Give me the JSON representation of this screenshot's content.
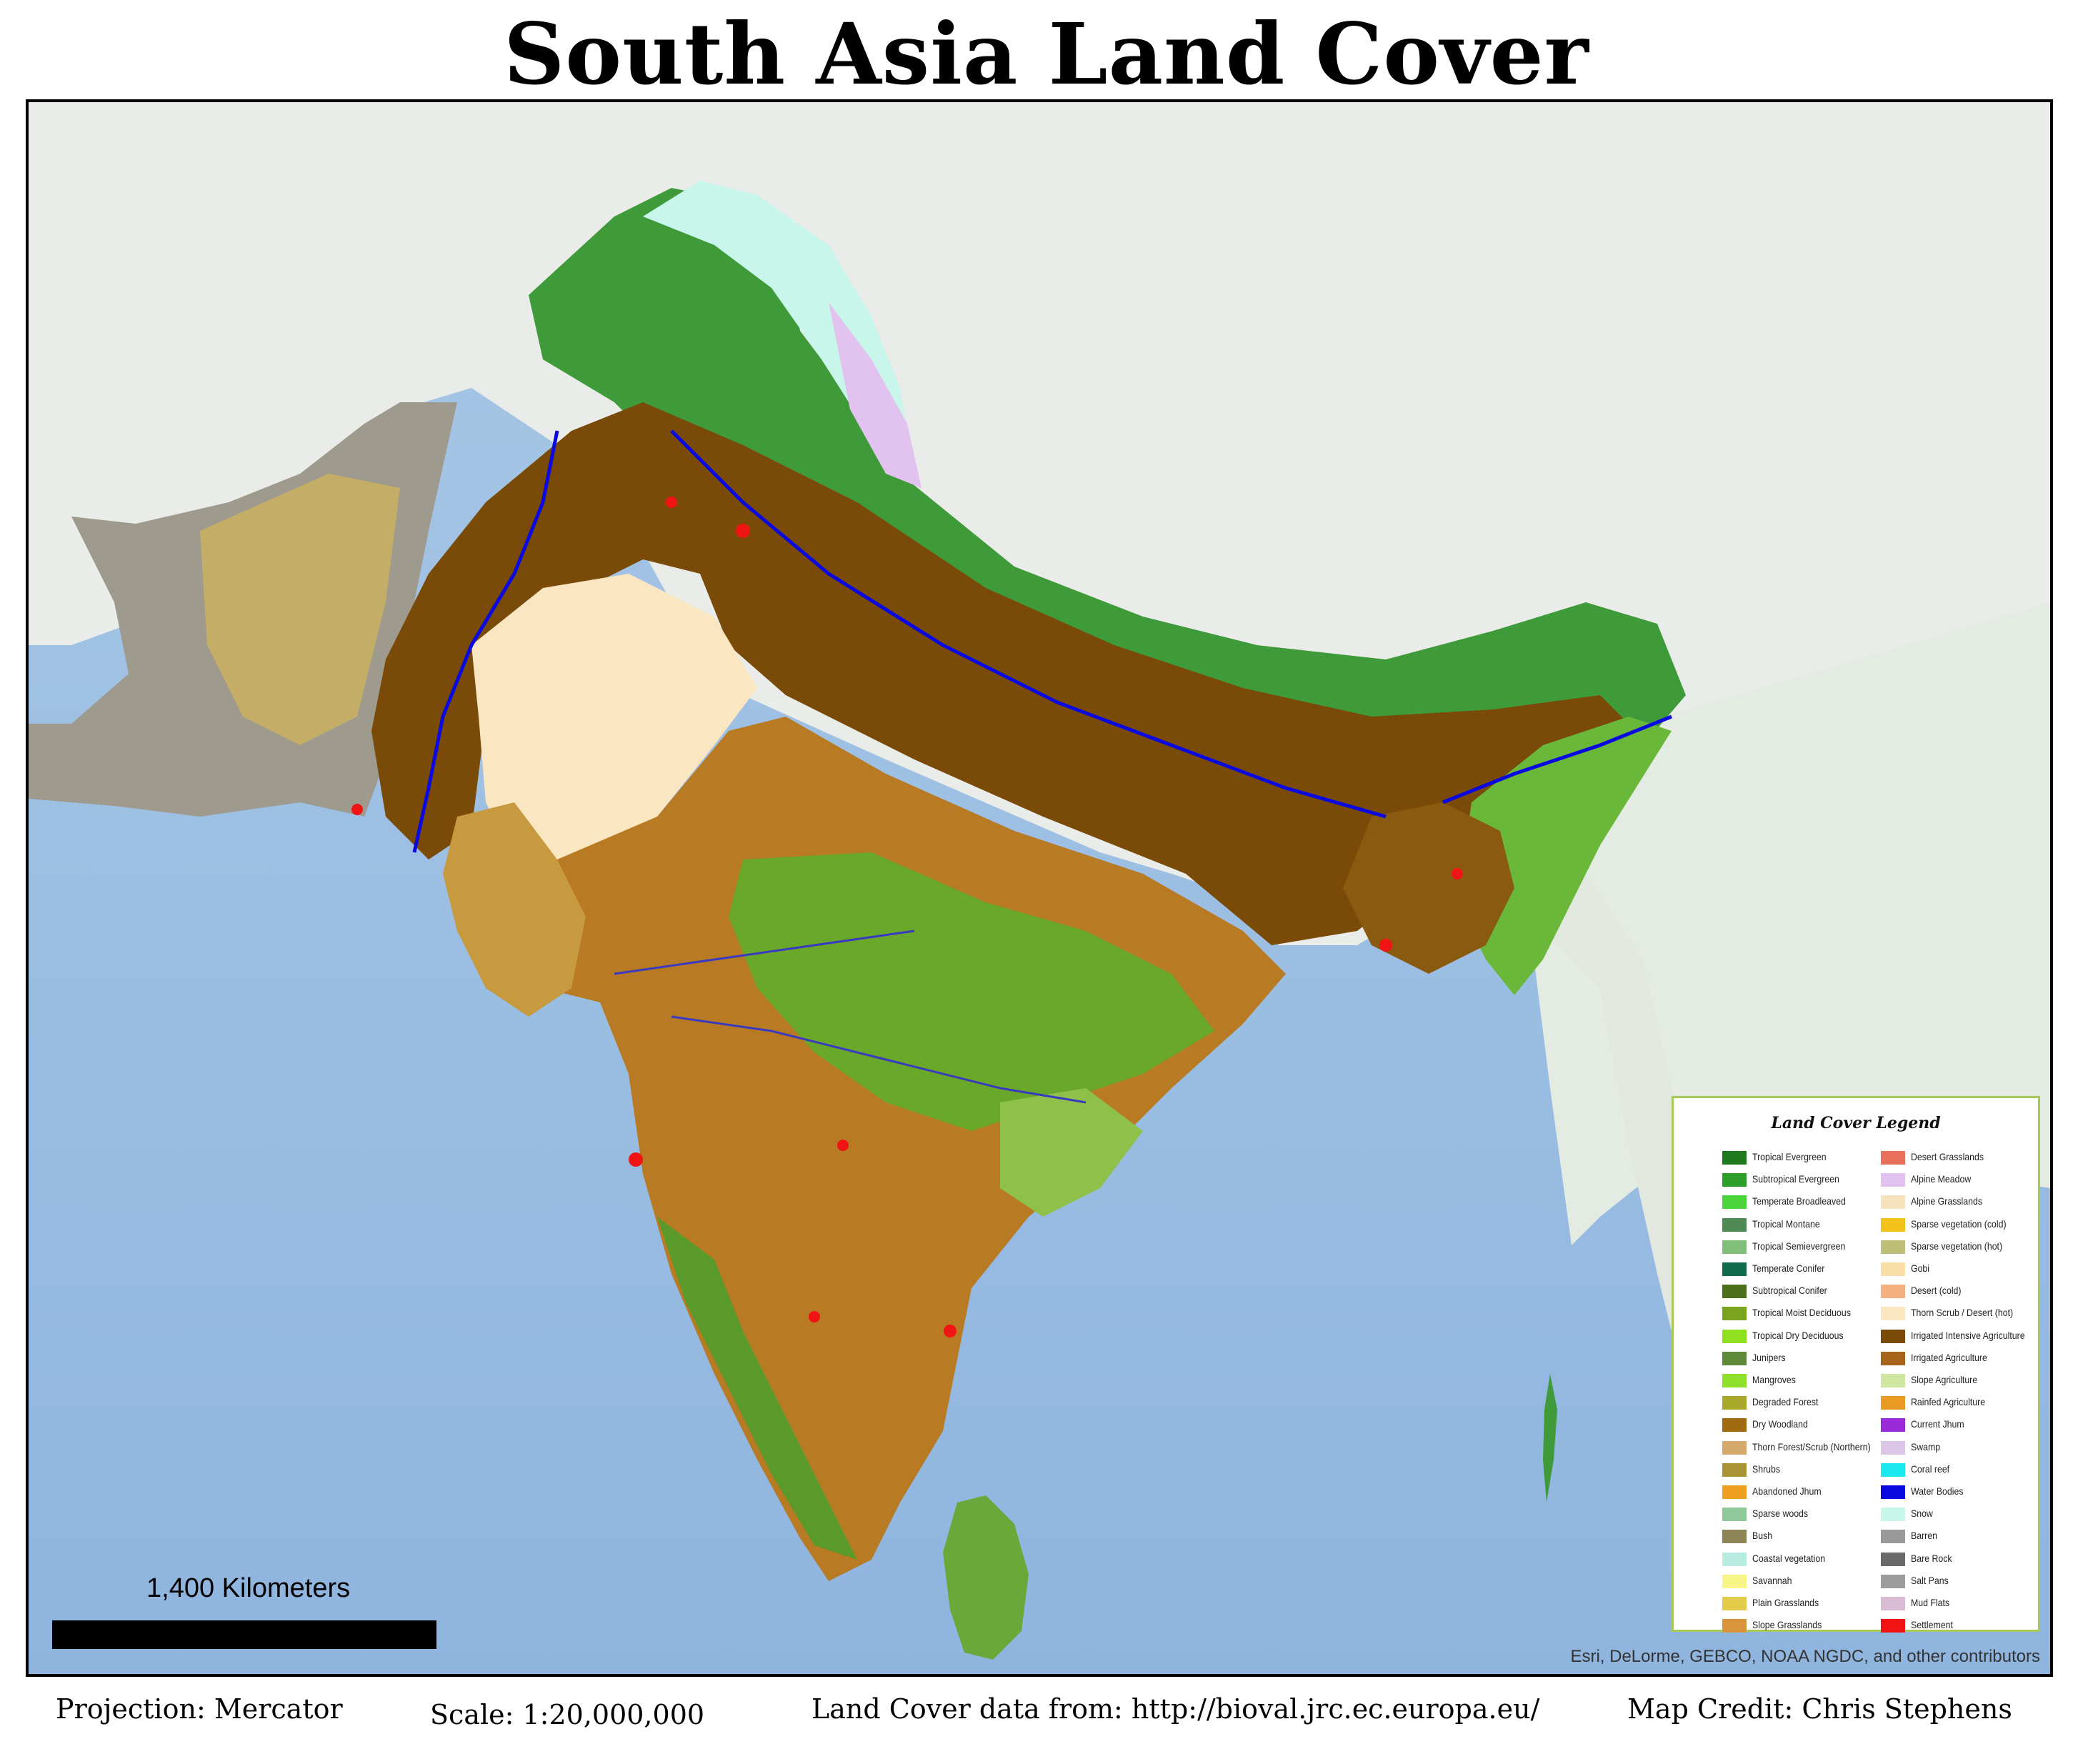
{
  "title": "South Asia Land Cover",
  "scale_bar": {
    "label": "1,400 Kilometers"
  },
  "attribution": "Esri, DeLorme, GEBCO, NOAA NGDC, and other contributors",
  "legend": {
    "title": "Land Cover Legend",
    "column1": [
      {
        "label": "Tropical Evergreen",
        "color": "#1f7a1f"
      },
      {
        "label": "Subtropical Evergreen",
        "color": "#2e9e2a"
      },
      {
        "label": "Temperate Broadleaved",
        "color": "#4cd43c"
      },
      {
        "label": "Tropical Montane",
        "color": "#4f8a55"
      },
      {
        "label": "Tropical Semievergreen",
        "color": "#7fbf7a"
      },
      {
        "label": "Temperate Conifer",
        "color": "#106b4c"
      },
      {
        "label": "Subtropical Conifer",
        "color": "#4b6e1a"
      },
      {
        "label": "Tropical Moist Deciduous",
        "color": "#7aa31e"
      },
      {
        "label": "Tropical Dry Deciduous",
        "color": "#8fe01e"
      },
      {
        "label": "Junipers",
        "color": "#5e8a3a"
      },
      {
        "label": "Mangroves",
        "color": "#8ee02a"
      },
      {
        "label": "Degraded Forest",
        "color": "#a8a82a"
      },
      {
        "label": "Dry Woodland",
        "color": "#a06a10"
      },
      {
        "label": "Thorn Forest/Scrub (Northern)",
        "color": "#d4a96a"
      },
      {
        "label": "Shrubs",
        "color": "#a89434"
      },
      {
        "label": "Abandoned Jhum",
        "color": "#f0a020"
      },
      {
        "label": "Sparse woods",
        "color": "#8fc99a"
      },
      {
        "label": "Bush",
        "color": "#8c8454"
      },
      {
        "label": "Coastal vegetation",
        "color": "#b8ece0"
      },
      {
        "label": "Savannah",
        "color": "#f7f585"
      },
      {
        "label": "Plain Grasslands",
        "color": "#e2cc4a"
      },
      {
        "label": "Slope Grasslands",
        "color": "#d8953c"
      }
    ],
    "column2": [
      {
        "label": "Desert Grasslands",
        "color": "#e8705a"
      },
      {
        "label": "Alpine Meadow",
        "color": "#e2c2ee"
      },
      {
        "label": "Alpine Grasslands",
        "color": "#f6e2bc"
      },
      {
        "label": "Sparse vegetation (cold)",
        "color": "#f2c21a"
      },
      {
        "label": "Sparse vegetation (hot)",
        "color": "#bfbf7a"
      },
      {
        "label": "Gobi",
        "color": "#f7dfa7"
      },
      {
        "label": "Desert (cold)",
        "color": "#f4b07e"
      },
      {
        "label": "Thorn Scrub / Desert (hot)",
        "color": "#fbe6c2"
      },
      {
        "label": "Irrigated Intensive Agriculture",
        "color": "#7a4a08"
      },
      {
        "label": "Irrigated Agriculture",
        "color": "#a8641a"
      },
      {
        "label": "Slope Agriculture",
        "color": "#cfe6a0"
      },
      {
        "label": "Rainfed Agriculture",
        "color": "#e89a22"
      },
      {
        "label": "Current Jhum",
        "color": "#9a2ad8"
      },
      {
        "label": "Swamp",
        "color": "#dcc6e8"
      },
      {
        "label": "Coral reef",
        "color": "#1aeaf0"
      },
      {
        "label": "Water Bodies",
        "color": "#0a0ae0"
      },
      {
        "label": "Snow",
        "color": "#c8f6ea"
      },
      {
        "label": "Barren",
        "color": "#999999"
      },
      {
        "label": "Bare Rock",
        "color": "#6a6a6a"
      },
      {
        "label": "Salt Pans",
        "color": "#9c9c9c"
      },
      {
        "label": "Mud Flats",
        "color": "#d8bcd4"
      },
      {
        "label": "Settlement",
        "color": "#f01414"
      }
    ]
  },
  "footer": {
    "projection": "Projection: Mercator",
    "scale": "Scale: 1:20,000,000",
    "data_source": "Land Cover data from: http://bioval.jrc.ec.europa.eu/",
    "credit": "Map Credit: Chris Stephens"
  }
}
